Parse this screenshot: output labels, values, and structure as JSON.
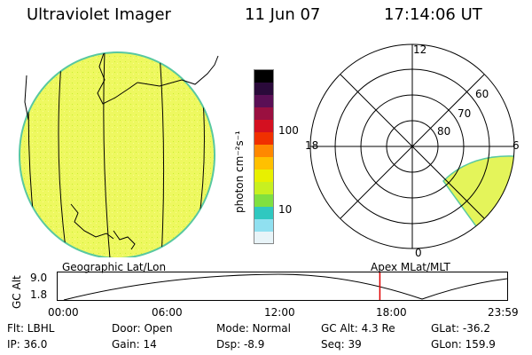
{
  "header": {
    "title": "Ultraviolet Imager",
    "date": "11 Jun 07",
    "time": "17:14:06 UT"
  },
  "colorbar": {
    "unit_label": "photon cm⁻²s⁻¹",
    "ticks": [
      "100",
      "10"
    ],
    "colors": [
      "#000000",
      "#2a0a3a",
      "#5a0f55",
      "#9a1040",
      "#d41020",
      "#f03000",
      "#ff8800",
      "#ffc000",
      "#e8f000",
      "#c8f020",
      "#80e040",
      "#30c8c0",
      "#90e0f0",
      "#e8f4f8"
    ]
  },
  "panels": {
    "left_label": "Geographic Lat/Lon",
    "right_label": "Apex MLat/MLT",
    "polar": {
      "mlt_labels": [
        "12",
        "18",
        "6",
        "0"
      ],
      "mlat_labels": [
        "60",
        "70",
        "80"
      ]
    }
  },
  "altitude_plot": {
    "ylabel": "GC Alt",
    "ytick_top": "9.0",
    "ytick_bottom": "1.8",
    "xticks": [
      "00:00",
      "06:00",
      "12:00",
      "18:00",
      "23:59"
    ],
    "current_time_fraction": 0.7168,
    "marker_color": "#e00000"
  },
  "footer": {
    "filter": "Flt: LBHL",
    "door": "Door: Open",
    "mode": "Mode: Normal",
    "gc_alt": "GC Alt: 4.3 Re",
    "glat": "GLat: -36.2",
    "ip": "IP: 36.0",
    "gain": "Gain: 14",
    "dsp": "Dsp:    -8.9",
    "seq": "Seq: 39",
    "glon": "GLon: 159.9"
  },
  "colors": {
    "earth_fill": "#eef860",
    "earth_edge": "#58c8a0",
    "auroral_fill": "#e4f45a"
  }
}
